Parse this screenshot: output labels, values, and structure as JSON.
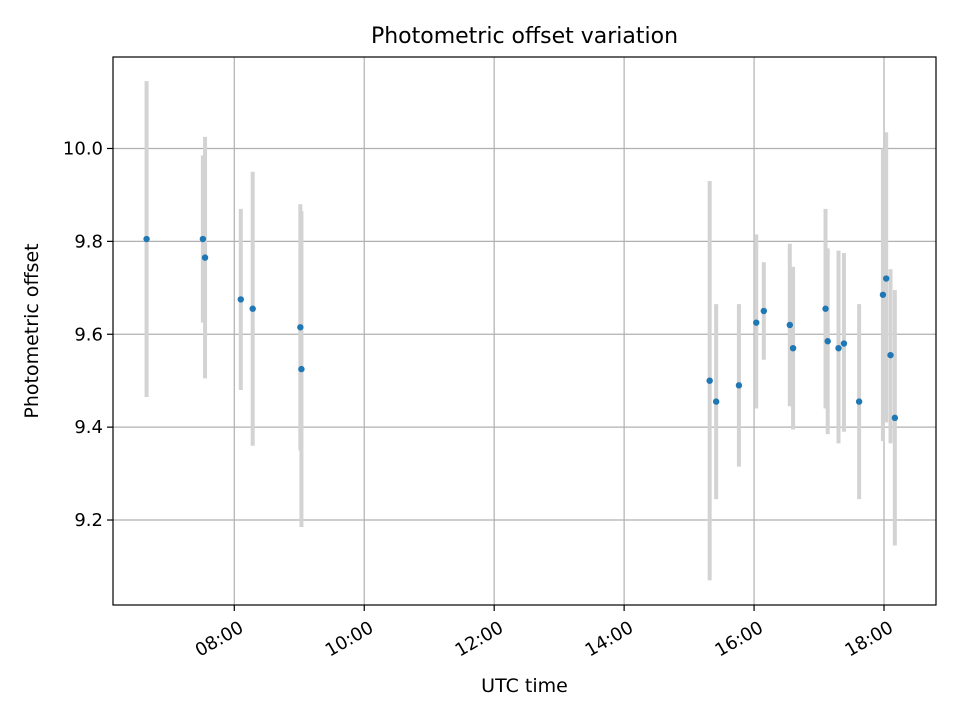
{
  "chart_data": {
    "type": "scatter",
    "title": "Photometric offset variation",
    "xlabel": "UTC time",
    "ylabel": "Photometric offset",
    "x_is_time": true,
    "xlim": [
      "06:08",
      "18:48"
    ],
    "ylim": [
      9.017,
      10.197
    ],
    "grid": true,
    "xticks": [
      "08:00",
      "10:00",
      "12:00",
      "14:00",
      "16:00",
      "18:00"
    ],
    "yticks": [
      9.2,
      9.4,
      9.6,
      9.8,
      10.0
    ],
    "ytick_labels": [
      "9.2",
      "9.4",
      "9.6",
      "9.8",
      "10.0"
    ],
    "marker_color": "#1f77b4",
    "errorbar_color": "#d3d3d3",
    "points": [
      {
        "x": "06:39",
        "y": 9.805,
        "ylo": 9.465,
        "yhi": 10.145
      },
      {
        "x": "07:31",
        "y": 9.805,
        "ylo": 9.625,
        "yhi": 9.985
      },
      {
        "x": "07:33",
        "y": 9.765,
        "ylo": 9.505,
        "yhi": 10.025
      },
      {
        "x": "08:06",
        "y": 9.675,
        "ylo": 9.48,
        "yhi": 9.87
      },
      {
        "x": "08:17",
        "y": 9.655,
        "ylo": 9.36,
        "yhi": 9.95
      },
      {
        "x": "09:01",
        "y": 9.615,
        "ylo": 9.35,
        "yhi": 9.88
      },
      {
        "x": "09:02",
        "y": 9.525,
        "ylo": 9.185,
        "yhi": 9.865
      },
      {
        "x": "15:19",
        "y": 9.5,
        "ylo": 9.07,
        "yhi": 9.93
      },
      {
        "x": "15:25",
        "y": 9.455,
        "ylo": 9.245,
        "yhi": 9.665
      },
      {
        "x": "15:46",
        "y": 9.49,
        "ylo": 9.315,
        "yhi": 9.665
      },
      {
        "x": "16:02",
        "y": 9.625,
        "ylo": 9.44,
        "yhi": 9.815
      },
      {
        "x": "16:09",
        "y": 9.65,
        "ylo": 9.545,
        "yhi": 9.755
      },
      {
        "x": "16:33",
        "y": 9.62,
        "ylo": 9.445,
        "yhi": 9.795
      },
      {
        "x": "16:36",
        "y": 9.57,
        "ylo": 9.395,
        "yhi": 9.745
      },
      {
        "x": "17:06",
        "y": 9.655,
        "ylo": 9.44,
        "yhi": 9.87
      },
      {
        "x": "17:08",
        "y": 9.585,
        "ylo": 9.385,
        "yhi": 9.785
      },
      {
        "x": "17:18",
        "y": 9.57,
        "ylo": 9.365,
        "yhi": 9.78
      },
      {
        "x": "17:23",
        "y": 9.58,
        "ylo": 9.39,
        "yhi": 9.775
      },
      {
        "x": "17:37",
        "y": 9.455,
        "ylo": 9.245,
        "yhi": 9.665
      },
      {
        "x": "17:59",
        "y": 9.685,
        "ylo": 9.37,
        "yhi": 10.0
      },
      {
        "x": "18:02",
        "y": 9.72,
        "ylo": 9.41,
        "yhi": 10.035
      },
      {
        "x": "18:06",
        "y": 9.555,
        "ylo": 9.365,
        "yhi": 9.74
      },
      {
        "x": "18:10",
        "y": 9.42,
        "ylo": 9.145,
        "yhi": 9.695
      }
    ]
  }
}
